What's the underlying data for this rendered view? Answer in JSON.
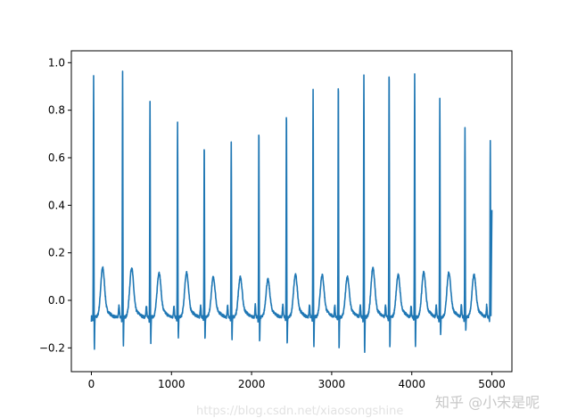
{
  "chart_data": {
    "type": "line",
    "title": "",
    "xlabel": "",
    "ylabel": "",
    "xlim": [
      -250,
      5250
    ],
    "ylim": [
      -0.3,
      1.05
    ],
    "grid": false,
    "line_color": "#1f77b4",
    "x_ticks": [
      0,
      1000,
      2000,
      3000,
      4000,
      5000
    ],
    "x_tick_labels": [
      "0",
      "1000",
      "2000",
      "3000",
      "4000",
      "5000"
    ],
    "y_ticks": [
      -0.2,
      0.0,
      0.2,
      0.4,
      0.6,
      0.8,
      1.0
    ],
    "y_tick_labels": [
      "−0.2",
      "0.0",
      "0.2",
      "0.4",
      "0.6",
      "0.8",
      "1.0"
    ],
    "series": [
      {
        "x_range": [
          0,
          5000
        ],
        "start_value": -0.09,
        "end_value": 0.38,
        "baseline": -0.07,
        "beats": [
          {
            "x": 28,
            "r": 0.95,
            "s": -0.22,
            "t": 0.13
          },
          {
            "x": 390,
            "r": 0.97,
            "s": -0.21,
            "t": 0.13
          },
          {
            "x": 732,
            "r": 0.835,
            "s": -0.19,
            "t": 0.11
          },
          {
            "x": 1076,
            "r": 0.75,
            "s": -0.17,
            "t": 0.11
          },
          {
            "x": 1409,
            "r": 0.675,
            "s": -0.17,
            "t": 0.09
          },
          {
            "x": 1746,
            "r": 0.67,
            "s": -0.17,
            "t": 0.09
          },
          {
            "x": 2091,
            "r": 0.73,
            "s": -0.19,
            "t": 0.08
          },
          {
            "x": 2435,
            "r": 0.81,
            "s": -0.19,
            "t": 0.1
          },
          {
            "x": 2768,
            "r": 0.885,
            "s": -0.21,
            "t": 0.1
          },
          {
            "x": 3083,
            "r": 0.935,
            "s": -0.22,
            "t": 0.09
          },
          {
            "x": 3402,
            "r": 0.955,
            "s": -0.24,
            "t": 0.13
          },
          {
            "x": 3717,
            "r": 0.99,
            "s": -0.21,
            "t": 0.1
          },
          {
            "x": 4036,
            "r": 0.96,
            "s": -0.21,
            "t": 0.11
          },
          {
            "x": 4350,
            "r": 0.85,
            "s": -0.16,
            "t": 0.11
          },
          {
            "x": 4664,
            "r": 0.725,
            "s": -0.14,
            "t": 0.1
          },
          {
            "x": 4980,
            "r": 0.67,
            "s": -0.1,
            "t": null
          }
        ]
      }
    ]
  },
  "watermark": {
    "line1": "知乎 @小宋是呢",
    "line2": "https://blog.csdn.net/xiaosongshine"
  }
}
